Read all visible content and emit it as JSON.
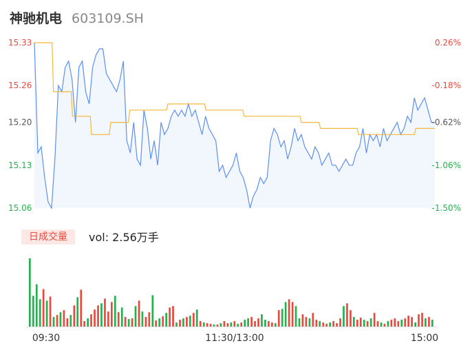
{
  "stock": {
    "name": "神驰机电",
    "code": "603109.SH"
  },
  "volume": {
    "tab_label": "日成交量",
    "summary": "vol: 2.56万手"
  },
  "colors": {
    "price": "#5b8ff0",
    "avg": "#f5b73a",
    "up": "#e64a3f",
    "down": "#22b14c",
    "area": "#f2f6fd"
  },
  "chart_data": {
    "type": "line",
    "y_ticks_left": [
      "15.33",
      "15.26",
      "15.20",
      "15.13",
      "15.06"
    ],
    "y_ticks_right": [
      "0.26%",
      "-0.18%",
      "-0.62%",
      "-1.06%",
      "-1.50%"
    ],
    "y_tick_values": [
      15.33,
      15.26,
      15.2,
      15.13,
      15.06
    ],
    "x_tick_labels": [
      "09:30",
      "11:30/13:00",
      "15:00"
    ],
    "ylim": [
      15.06,
      15.33
    ],
    "series": [
      {
        "type": "line",
        "values": [
          15.33,
          15.15,
          15.16,
          15.11,
          15.07,
          15.06,
          15.14,
          15.26,
          15.25,
          15.29,
          15.3,
          15.27,
          15.2,
          15.29,
          15.3,
          15.25,
          15.23,
          15.29,
          15.31,
          15.32,
          15.32,
          15.28,
          15.27,
          15.26,
          15.25,
          15.27,
          15.3,
          15.17,
          15.15,
          15.2,
          15.14,
          15.13,
          15.22,
          15.19,
          15.14,
          15.17,
          15.13,
          15.2,
          15.18,
          15.19,
          15.21,
          15.22,
          15.21,
          15.22,
          15.21,
          15.23,
          15.21,
          15.22,
          15.2,
          15.18,
          15.21,
          15.19,
          15.18,
          15.17,
          15.12,
          15.13,
          15.11,
          15.12,
          15.13,
          15.15,
          15.12,
          15.11,
          15.09,
          15.06,
          15.08,
          15.09,
          15.11,
          15.1,
          15.11,
          15.17,
          15.19,
          15.18,
          15.16,
          15.17,
          15.14,
          15.16,
          15.19,
          15.17,
          15.18,
          15.16,
          15.15,
          15.14,
          15.16,
          15.15,
          15.13,
          15.14,
          15.15,
          15.13,
          15.13,
          15.12,
          15.13,
          15.14,
          15.13,
          15.13,
          15.15,
          15.16,
          15.19,
          15.15,
          15.18,
          15.17,
          15.18,
          15.16,
          15.19,
          15.17,
          15.18,
          15.19,
          15.2,
          15.18,
          15.19,
          15.21,
          15.2,
          15.24,
          15.22,
          15.23,
          15.24,
          15.22,
          15.2,
          15.2
        ],
        "color": "#5b8ff0"
      },
      {
        "type": "line",
        "values": [
          15.33,
          15.25,
          15.21,
          15.18,
          15.2,
          15.22,
          15.22,
          15.23,
          15.23,
          15.22,
          15.22,
          15.21,
          15.21,
          15.21,
          15.2,
          15.19,
          15.19,
          15.18,
          15.18,
          15.18,
          15.19,
          15.19
        ],
        "color": "#f5b73a"
      }
    ],
    "volume": {
      "values": [
        100,
        45,
        62,
        40,
        55,
        38,
        44,
        14,
        17,
        21,
        24,
        12,
        17,
        31,
        43,
        54,
        8,
        12,
        18,
        25,
        31,
        34,
        41,
        22,
        36,
        45,
        21,
        28,
        14,
        11,
        12,
        30,
        38,
        22,
        14,
        21,
        46,
        9,
        12,
        15,
        20,
        28,
        30,
        6,
        10,
        12,
        14,
        16,
        20,
        25,
        8,
        6,
        5,
        4,
        3,
        3,
        5,
        8,
        5,
        6,
        8,
        4,
        6,
        10,
        12,
        14,
        8,
        12,
        18,
        10,
        8,
        6,
        5,
        24,
        26,
        36,
        40,
        36,
        30,
        12,
        18,
        14,
        12,
        20,
        10,
        8,
        6,
        4,
        6,
        8,
        5,
        12,
        30,
        34,
        24,
        14,
        10,
        13,
        10,
        8,
        12,
        20,
        8,
        6,
        4,
        8,
        10,
        12,
        8,
        10,
        12,
        16,
        14,
        6,
        18,
        20,
        12,
        14,
        10
      ],
      "directions": [
        "d",
        "d",
        "d",
        "d",
        "u",
        "d",
        "u",
        "d",
        "u",
        "d",
        "u",
        "u",
        "d",
        "u",
        "d",
        "u",
        "u",
        "d",
        "u",
        "u",
        "u",
        "d",
        "u",
        "u",
        "u",
        "d",
        "u",
        "d",
        "u",
        "d",
        "u",
        "d",
        "u",
        "d",
        "u",
        "u",
        "d",
        "u",
        "d",
        "u",
        "d",
        "u",
        "u",
        "d",
        "u",
        "d",
        "u",
        "d",
        "u",
        "d",
        "u",
        "d",
        "u",
        "u",
        "d",
        "u",
        "d",
        "u",
        "u",
        "d",
        "u",
        "d",
        "u",
        "d",
        "d",
        "u",
        "u",
        "u",
        "d",
        "d",
        "u",
        "u",
        "d",
        "u",
        "d",
        "d",
        "u",
        "u",
        "d",
        "d",
        "u",
        "u",
        "d",
        "u",
        "u",
        "d",
        "u",
        "u",
        "d",
        "u",
        "u",
        "u",
        "d",
        "u",
        "u",
        "d",
        "u",
        "u",
        "d",
        "u",
        "d",
        "u",
        "u",
        "d",
        "u",
        "d",
        "u",
        "u",
        "u",
        "d",
        "u",
        "u",
        "u",
        "d",
        "u",
        "u",
        "d",
        "u",
        "d"
      ]
    }
  }
}
